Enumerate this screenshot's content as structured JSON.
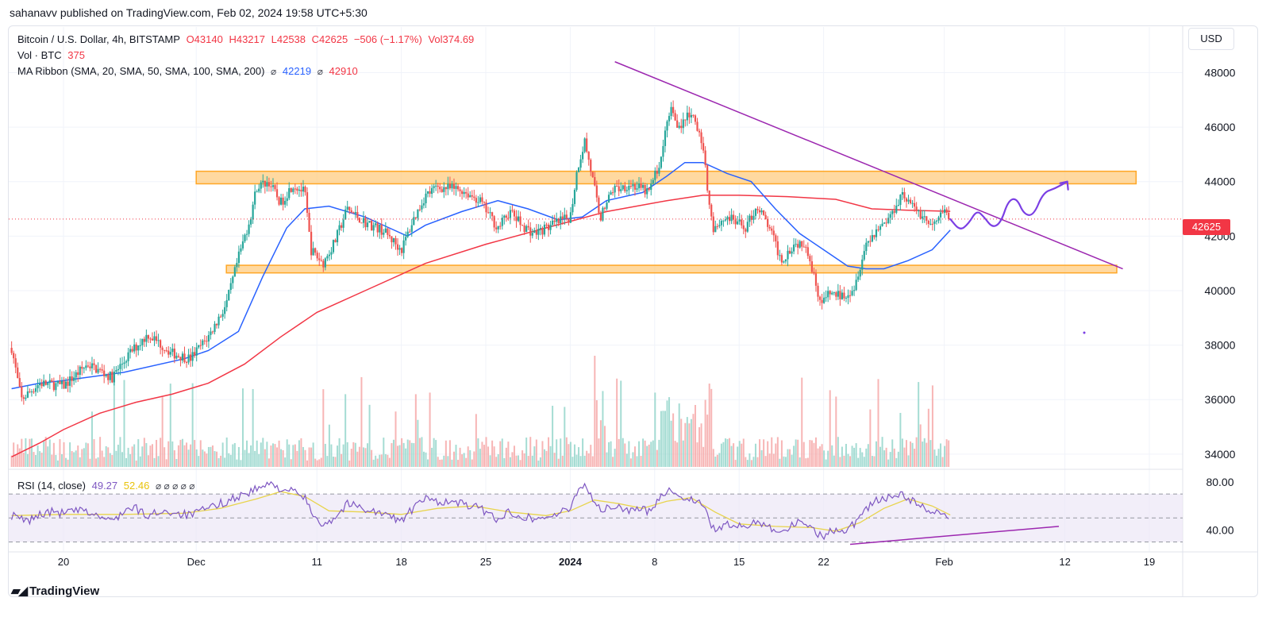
{
  "publisher_line": "sahanavv published on TradingView.com, Feb 02, 2024 19:58 UTC+5:30",
  "footer": {
    "logo_text": "TradingView",
    "logo_icon": "tradingview-logo-icon"
  },
  "currency": "USD",
  "last_price_label": "42625",
  "legend": {
    "symbol": "Bitcoin / U.S. Dollar, 4h, BITSTAMP",
    "open": "O43140",
    "high": "H43217",
    "low": "L42538",
    "close": "C42625",
    "change": "−506 (−1.17%)",
    "vol": "Vol374.69",
    "vol_label": "Vol · BTC",
    "vol_value": "375",
    "ma_label": "MA Ribbon (SMA, 20, SMA, 50, SMA, 100, SMA, 200)",
    "ma_icon": "⌀",
    "ma_value_1": "42219",
    "ma_value_2": "42910",
    "rsi_label": "RSI (14, close)",
    "rsi_value": "49.27",
    "rsi_ma_value": "52.46",
    "rsi_icons": "⌀ ⌀ ⌀ ⌀ ⌀"
  },
  "colors": {
    "up": "#26a69a",
    "down": "#ef5350",
    "vol_up": "#8fd3c8",
    "vol_down": "#f5a3a3",
    "ma_blue": "#2962ff",
    "ma_red": "#f23645",
    "trend": "#9c27b0",
    "zone_fill": "#ffcc80",
    "zone_stroke": "#ffa726",
    "rsi": "#7e57c2",
    "rsi_ma": "#e8d44d",
    "rsi_band": "#ede7f6"
  },
  "chart_data": {
    "type": "candlestick",
    "title": "Bitcoin / U.S. Dollar, 4h, BITSTAMP",
    "ylim": [
      33500,
      49500
    ],
    "y_ticks": [
      "48000",
      "46000",
      "44000",
      "42000",
      "40000",
      "38000",
      "36000",
      "34000"
    ],
    "x_ticks": [
      {
        "label": "20",
        "day": 0,
        "bold": false
      },
      {
        "label": "Dec",
        "day": 11,
        "bold": false
      },
      {
        "label": "11",
        "day": 21,
        "bold": false
      },
      {
        "label": "18",
        "day": 28,
        "bold": false
      },
      {
        "label": "25",
        "day": 35,
        "bold": false
      },
      {
        "label": "2024",
        "day": 42,
        "bold": true
      },
      {
        "label": "8",
        "day": 49,
        "bold": false
      },
      {
        "label": "15",
        "day": 56,
        "bold": false
      },
      {
        "label": "22",
        "day": 63,
        "bold": false
      },
      {
        "label": "Feb",
        "day": 73,
        "bold": false
      },
      {
        "label": "12",
        "day": 83,
        "bold": false
      },
      {
        "label": "19",
        "day": 90,
        "bold": false
      }
    ],
    "price_path": [
      [
        -4.3,
        37900
      ],
      [
        -3.5,
        36000
      ],
      [
        -2,
        36600
      ],
      [
        0,
        36500
      ],
      [
        2,
        37300
      ],
      [
        4,
        36800
      ],
      [
        5.5,
        37700
      ],
      [
        7,
        38400
      ],
      [
        9,
        37700
      ],
      [
        10.5,
        37500
      ],
      [
        12,
        38300
      ],
      [
        13.5,
        39500
      ],
      [
        14.5,
        41200
      ],
      [
        15.5,
        42700
      ],
      [
        16,
        43800
      ],
      [
        17,
        44000
      ],
      [
        18,
        43200
      ],
      [
        19,
        43900
      ],
      [
        20,
        43600
      ],
      [
        20.5,
        41500
      ],
      [
        21.5,
        41000
      ],
      [
        22.5,
        41800
      ],
      [
        23.5,
        43000
      ],
      [
        25,
        42500
      ],
      [
        26.5,
        42200
      ],
      [
        28,
        41500
      ],
      [
        29,
        42600
      ],
      [
        30,
        43500
      ],
      [
        31,
        43800
      ],
      [
        33,
        43700
      ],
      [
        34.5,
        43300
      ],
      [
        36,
        42300
      ],
      [
        37,
        42900
      ],
      [
        38,
        42400
      ],
      [
        39,
        42100
      ],
      [
        40.5,
        42400
      ],
      [
        42,
        42700
      ],
      [
        42.6,
        44500
      ],
      [
        43.2,
        45500
      ],
      [
        44.5,
        42700
      ],
      [
        45.5,
        43700
      ],
      [
        47,
        43900
      ],
      [
        48.5,
        43600
      ],
      [
        49.5,
        44800
      ],
      [
        50.3,
        46800
      ],
      [
        51,
        46000
      ],
      [
        52,
        46500
      ],
      [
        52.9,
        45500
      ],
      [
        53.8,
        42300
      ],
      [
        55,
        42700
      ],
      [
        56.5,
        42300
      ],
      [
        57.5,
        43100
      ],
      [
        58.5,
        42300
      ],
      [
        59.5,
        41100
      ],
      [
        60.5,
        41700
      ],
      [
        61.5,
        41800
      ],
      [
        62.1,
        40700
      ],
      [
        62.8,
        39500
      ],
      [
        63.5,
        39900
      ],
      [
        64.5,
        39800
      ],
      [
        65.5,
        40100
      ],
      [
        66.5,
        41700
      ],
      [
        67.5,
        42300
      ],
      [
        68.5,
        42700
      ],
      [
        69.5,
        43600
      ],
      [
        70.3,
        43100
      ],
      [
        71.3,
        42700
      ],
      [
        72,
        42300
      ],
      [
        73,
        42900
      ],
      [
        73.5,
        42625
      ]
    ],
    "volume_max": 37800,
    "ma_200": [
      [
        -4.3,
        33900
      ],
      [
        -2,
        34400
      ],
      [
        0,
        34900
      ],
      [
        3,
        35500
      ],
      [
        6,
        35900
      ],
      [
        9,
        36200
      ],
      [
        12,
        36600
      ],
      [
        15,
        37300
      ],
      [
        18,
        38300
      ],
      [
        21,
        39200
      ],
      [
        25,
        40000
      ],
      [
        30,
        41000
      ],
      [
        35,
        41700
      ],
      [
        40,
        42300
      ],
      [
        45,
        42900
      ],
      [
        50,
        43300
      ],
      [
        53,
        43500
      ],
      [
        56,
        43500
      ],
      [
        60,
        43450
      ],
      [
        64,
        43350
      ],
      [
        67,
        43000
      ],
      [
        70,
        42950
      ],
      [
        73.5,
        42910
      ]
    ],
    "ma_50": [
      [
        -4.3,
        36400
      ],
      [
        -2,
        36600
      ],
      [
        0,
        36700
      ],
      [
        5,
        37000
      ],
      [
        10,
        37500
      ],
      [
        12,
        37800
      ],
      [
        14.5,
        38500
      ],
      [
        16.5,
        40500
      ],
      [
        18.5,
        42300
      ],
      [
        20,
        43000
      ],
      [
        22,
        43100
      ],
      [
        25,
        42700
      ],
      [
        27,
        42300
      ],
      [
        28.5,
        42000
      ],
      [
        30,
        42400
      ],
      [
        33,
        42900
      ],
      [
        36,
        43300
      ],
      [
        38.5,
        43000
      ],
      [
        41,
        42600
      ],
      [
        43,
        42700
      ],
      [
        45,
        43300
      ],
      [
        48,
        43600
      ],
      [
        50,
        44200
      ],
      [
        51.5,
        44700
      ],
      [
        53,
        44700
      ],
      [
        55,
        44300
      ],
      [
        57,
        44000
      ],
      [
        59,
        43000
      ],
      [
        61,
        42100
      ],
      [
        63,
        41500
      ],
      [
        65,
        40900
      ],
      [
        66.5,
        40800
      ],
      [
        68,
        40800
      ],
      [
        70,
        41100
      ],
      [
        72,
        41500
      ],
      [
        73.5,
        42219
      ]
    ],
    "projection": [
      [
        73.5,
        42625
      ],
      [
        74.3,
        42200
      ],
      [
        75,
        42450
      ],
      [
        75.7,
        42950
      ],
      [
        76.3,
        42700
      ],
      [
        77,
        42300
      ],
      [
        77.7,
        42500
      ],
      [
        78.3,
        43300
      ],
      [
        79,
        43400
      ],
      [
        79.6,
        42800
      ],
      [
        80.4,
        42750
      ],
      [
        81.2,
        43600
      ],
      [
        82.2,
        43750
      ],
      [
        83.2,
        44000
      ]
    ],
    "trendline": [
      [
        45.7,
        48400
      ],
      [
        87.8,
        40800
      ]
    ],
    "zones": [
      {
        "name": "resistance-zone",
        "from": 43920,
        "to": 44380,
        "x0": 11,
        "x1": 88.9
      },
      {
        "name": "support-zone",
        "from": 40650,
        "to": 40930,
        "x0": 13.5,
        "x1": 87.3
      }
    ],
    "rsi": {
      "ylim": [
        25,
        88
      ],
      "y_ticks": [
        "80.00",
        "40.00"
      ],
      "upper": 70,
      "middle": 50,
      "lower": 30,
      "path": [
        [
          -4.3,
          52
        ],
        [
          -3,
          47
        ],
        [
          -2,
          53
        ],
        [
          -1,
          55
        ],
        [
          0,
          54
        ],
        [
          1,
          56
        ],
        [
          2,
          55
        ],
        [
          3,
          51
        ],
        [
          4,
          47
        ],
        [
          5,
          56
        ],
        [
          6,
          58
        ],
        [
          7,
          51
        ],
        [
          8,
          56
        ],
        [
          9,
          55
        ],
        [
          10.5,
          52
        ],
        [
          12,
          58
        ],
        [
          13,
          62
        ],
        [
          14,
          66
        ],
        [
          15,
          70
        ],
        [
          16,
          74
        ],
        [
          17,
          78
        ],
        [
          18,
          75
        ],
        [
          19,
          72
        ],
        [
          20,
          67
        ],
        [
          20.5,
          55
        ],
        [
          21.5,
          45
        ],
        [
          22.5,
          50
        ],
        [
          23.5,
          62
        ],
        [
          25,
          58
        ],
        [
          26.5,
          53
        ],
        [
          28,
          48
        ],
        [
          29,
          58
        ],
        [
          30,
          66
        ],
        [
          31,
          64
        ],
        [
          33,
          62
        ],
        [
          34.5,
          58
        ],
        [
          36,
          49
        ],
        [
          37,
          55
        ],
        [
          38,
          52
        ],
        [
          39,
          49
        ],
        [
          40.5,
          52
        ],
        [
          42,
          57
        ],
        [
          42.6,
          74
        ],
        [
          43.2,
          78
        ],
        [
          44.5,
          56
        ],
        [
          45.5,
          59
        ],
        [
          47,
          57
        ],
        [
          48.5,
          56
        ],
        [
          49.5,
          68
        ],
        [
          50.3,
          76
        ],
        [
          51,
          66
        ],
        [
          52,
          67
        ],
        [
          52.9,
          62
        ],
        [
          53.8,
          41
        ],
        [
          55,
          44
        ],
        [
          56.5,
          42
        ],
        [
          57.5,
          48
        ],
        [
          58.5,
          43
        ],
        [
          59.5,
          38
        ],
        [
          60.5,
          45
        ],
        [
          61.5,
          47
        ],
        [
          62.1,
          42
        ],
        [
          62.8,
          34
        ],
        [
          63.5,
          39
        ],
        [
          64.5,
          39
        ],
        [
          65.5,
          45
        ],
        [
          66.5,
          58
        ],
        [
          67.5,
          65
        ],
        [
          68.5,
          67
        ],
        [
          69.5,
          70
        ],
        [
          70.3,
          64
        ],
        [
          71.3,
          59
        ],
        [
          72,
          52
        ],
        [
          73,
          56
        ],
        [
          73.5,
          49.27
        ]
      ],
      "ma_path": [
        [
          -4.3,
          52
        ],
        [
          0,
          53
        ],
        [
          5,
          53
        ],
        [
          10,
          54
        ],
        [
          13,
          58
        ],
        [
          16,
          66
        ],
        [
          18,
          72
        ],
        [
          20,
          68
        ],
        [
          22,
          56
        ],
        [
          25,
          55
        ],
        [
          28,
          53
        ],
        [
          31,
          58
        ],
        [
          34,
          60
        ],
        [
          37,
          55
        ],
        [
          40,
          52
        ],
        [
          42,
          56
        ],
        [
          44,
          65
        ],
        [
          46,
          62
        ],
        [
          48,
          58
        ],
        [
          50,
          64
        ],
        [
          52,
          67
        ],
        [
          54,
          55
        ],
        [
          56,
          45
        ],
        [
          59,
          43
        ],
        [
          62,
          42
        ],
        [
          64,
          39
        ],
        [
          66,
          46
        ],
        [
          68,
          58
        ],
        [
          70,
          66
        ],
        [
          72,
          60
        ],
        [
          73.5,
          52.46
        ]
      ],
      "trendline": [
        [
          65.2,
          28
        ],
        [
          82.5,
          43
        ]
      ]
    }
  }
}
